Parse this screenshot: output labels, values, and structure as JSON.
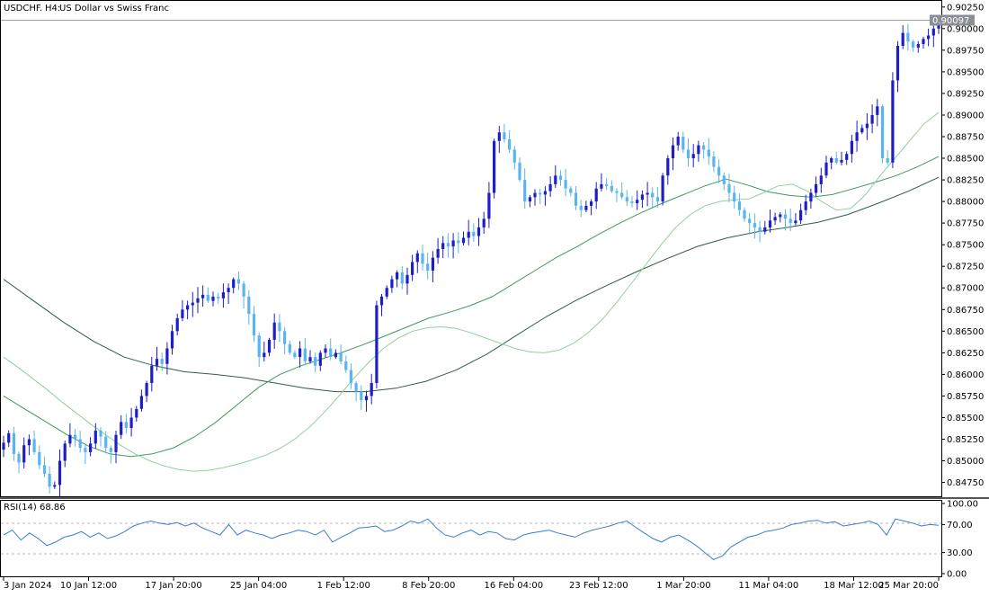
{
  "header": {
    "symbol": "USDCHF.",
    "timeframe": "H4:",
    "description": "US Dollar vs Swiss Franc"
  },
  "price_panel": {
    "current_price_label": "0.90097",
    "y_ticks": [
      "0.90250",
      "0.90000",
      "0.89750",
      "0.89500",
      "0.89250",
      "0.89000",
      "0.88750",
      "0.88500",
      "0.88250",
      "0.88000",
      "0.87750",
      "0.87500",
      "0.87250",
      "0.87000",
      "0.86750",
      "0.86500",
      "0.86250",
      "0.86000",
      "0.85750",
      "0.85500",
      "0.85250",
      "0.85000",
      "0.84750"
    ]
  },
  "rsi_panel": {
    "label": "RSI(14) 68.86",
    "y_ticks": [
      "100.00",
      "70.00",
      "30.00",
      "0.00"
    ]
  },
  "x_axis": {
    "ticks": [
      "3 Jan 2024",
      "10 Jan 12:00",
      "17 Jan 20:00",
      "25 Jan 04:00",
      "1 Feb 12:00",
      "8 Feb 20:00",
      "16 Feb 04:00",
      "23 Feb 12:00",
      "1 Mar 20:00",
      "11 Mar 04:00",
      "18 Mar 12:00",
      "25 Mar 20:00"
    ]
  },
  "colors": {
    "bull": "#1e1ec8",
    "bear": "#5ab4f0",
    "ma_fast": "#8fd0a0",
    "ma_mid": "#3f9a5a",
    "ma_slow": "#2e5e44",
    "rsi": "#3a7bd5",
    "price_line": "#a0a0a0",
    "price_label_bg": "#8a8f96"
  },
  "chart_data": {
    "type": "candlestick",
    "title": "USDCHF., H4: US Dollar vs Swiss Franc",
    "ylim": [
      0.846,
      0.9031
    ],
    "last_price": 0.90097,
    "closes": [
      0.8521,
      0.8532,
      0.8508,
      0.8498,
      0.8518,
      0.8525,
      0.851,
      0.8495,
      0.8485,
      0.847,
      0.8472,
      0.85,
      0.852,
      0.853,
      0.8525,
      0.8515,
      0.851,
      0.852,
      0.8535,
      0.8528,
      0.8515,
      0.851,
      0.853,
      0.8545,
      0.8538,
      0.855,
      0.856,
      0.8575,
      0.859,
      0.861,
      0.8618,
      0.8612,
      0.863,
      0.865,
      0.8665,
      0.8675,
      0.868,
      0.8683,
      0.8688,
      0.8692,
      0.8685,
      0.869,
      0.8688,
      0.8695,
      0.87,
      0.871,
      0.8705,
      0.869,
      0.867,
      0.8645,
      0.862,
      0.8625,
      0.864,
      0.866,
      0.865,
      0.8635,
      0.8625,
      0.862,
      0.863,
      0.8615,
      0.862,
      0.861,
      0.8625,
      0.863,
      0.862,
      0.8625,
      0.8615,
      0.8605,
      0.859,
      0.858,
      0.857,
      0.8575,
      0.859,
      0.868,
      0.869,
      0.87,
      0.871,
      0.8718,
      0.8705,
      0.8715,
      0.873,
      0.874,
      0.8728,
      0.872,
      0.8735,
      0.8745,
      0.8752,
      0.8748,
      0.8755,
      0.8752,
      0.8758,
      0.8765,
      0.876,
      0.877,
      0.878,
      0.881,
      0.887,
      0.888,
      0.8872,
      0.886,
      0.8845,
      0.8825,
      0.88,
      0.8805,
      0.881,
      0.8808,
      0.8812,
      0.882,
      0.883,
      0.8825,
      0.8815,
      0.881,
      0.8795,
      0.879,
      0.8795,
      0.88,
      0.8815,
      0.882,
      0.8818,
      0.8812,
      0.881,
      0.8805,
      0.88,
      0.8798,
      0.8802,
      0.8808,
      0.881,
      0.8805,
      0.88,
      0.883,
      0.885,
      0.8865,
      0.8875,
      0.886,
      0.885,
      0.8855,
      0.8865,
      0.886,
      0.8852,
      0.884,
      0.883,
      0.882,
      0.881,
      0.88,
      0.879,
      0.878,
      0.8775,
      0.877,
      0.8765,
      0.877,
      0.8778,
      0.8782,
      0.8785,
      0.878,
      0.8775,
      0.8778,
      0.879,
      0.88,
      0.881,
      0.882,
      0.883,
      0.8845,
      0.885,
      0.8845,
      0.8848,
      0.8855,
      0.887,
      0.888,
      0.8885,
      0.889,
      0.89,
      0.891,
      0.885,
      0.8845,
      0.894,
      0.898,
      0.8995,
      0.8985,
      0.8978,
      0.8982,
      0.8988,
      0.8992,
      0.9,
      0.901
    ],
    "ma_fast": [
      0.862,
      0.8608,
      0.8595,
      0.8582,
      0.8568,
      0.8555,
      0.8542,
      0.853,
      0.8518,
      0.8508,
      0.85,
      0.8494,
      0.849,
      0.8488,
      0.8489,
      0.8492,
      0.8496,
      0.8501,
      0.8507,
      0.8515,
      0.8526,
      0.854,
      0.8557,
      0.8576,
      0.8596,
      0.8614,
      0.863,
      0.8642,
      0.865,
      0.8654,
      0.8655,
      0.8653,
      0.8648,
      0.8642,
      0.8636,
      0.863,
      0.8626,
      0.8625,
      0.8628,
      0.8636,
      0.8648,
      0.8664,
      0.8684,
      0.8706,
      0.8728,
      0.875,
      0.877,
      0.8785,
      0.8795,
      0.88,
      0.8802,
      0.8803,
      0.881,
      0.8818,
      0.882,
      0.8812,
      0.88,
      0.879,
      0.8792,
      0.8808,
      0.883,
      0.885,
      0.887,
      0.889,
      0.8903
    ],
    "ma_mid": [
      0.8575,
      0.856,
      0.8545,
      0.853,
      0.8517,
      0.8508,
      0.8505,
      0.8508,
      0.8515,
      0.8528,
      0.8545,
      0.8565,
      0.8585,
      0.86,
      0.861,
      0.8618,
      0.8626,
      0.8635,
      0.8645,
      0.8655,
      0.8665,
      0.8672,
      0.868,
      0.869,
      0.8705,
      0.872,
      0.8735,
      0.8748,
      0.8762,
      0.8775,
      0.8787,
      0.8798,
      0.8808,
      0.8818,
      0.8826,
      0.8819,
      0.8811,
      0.8807,
      0.8805,
      0.8808,
      0.8815,
      0.8822,
      0.883,
      0.884,
      0.8852
    ],
    "ma_slow": [
      0.871,
      0.8685,
      0.866,
      0.8638,
      0.862,
      0.861,
      0.8603,
      0.86,
      0.8596,
      0.859,
      0.8584,
      0.858,
      0.858,
      0.8584,
      0.8592,
      0.8605,
      0.8623,
      0.8645,
      0.8667,
      0.8686,
      0.8703,
      0.8719,
      0.8734,
      0.8748,
      0.8758,
      0.8765,
      0.877,
      0.8776,
      0.8785,
      0.8798,
      0.8812,
      0.8828
    ],
    "rsi": [
      55,
      62,
      48,
      58,
      50,
      40,
      45,
      52,
      55,
      60,
      52,
      58,
      50,
      54,
      60,
      68,
      72,
      75,
      72,
      70,
      73,
      68,
      72,
      65,
      60,
      55,
      70,
      55,
      62,
      58,
      55,
      50,
      55,
      58,
      62,
      60,
      55,
      62,
      45,
      52,
      58,
      65,
      66,
      68,
      60,
      62,
      68,
      75,
      72,
      78,
      65,
      55,
      52,
      58,
      62,
      55,
      60,
      58,
      50,
      48,
      55,
      58,
      60,
      62,
      58,
      55,
      52,
      58,
      62,
      65,
      68,
      72,
      75,
      66,
      58,
      50,
      45,
      52,
      55,
      48,
      40,
      30,
      20,
      25,
      38,
      45,
      52,
      55,
      60,
      62,
      65,
      70,
      72,
      75,
      76,
      72,
      74,
      68,
      70,
      72,
      75,
      70,
      55,
      78,
      75,
      72,
      68,
      70,
      69
    ]
  }
}
